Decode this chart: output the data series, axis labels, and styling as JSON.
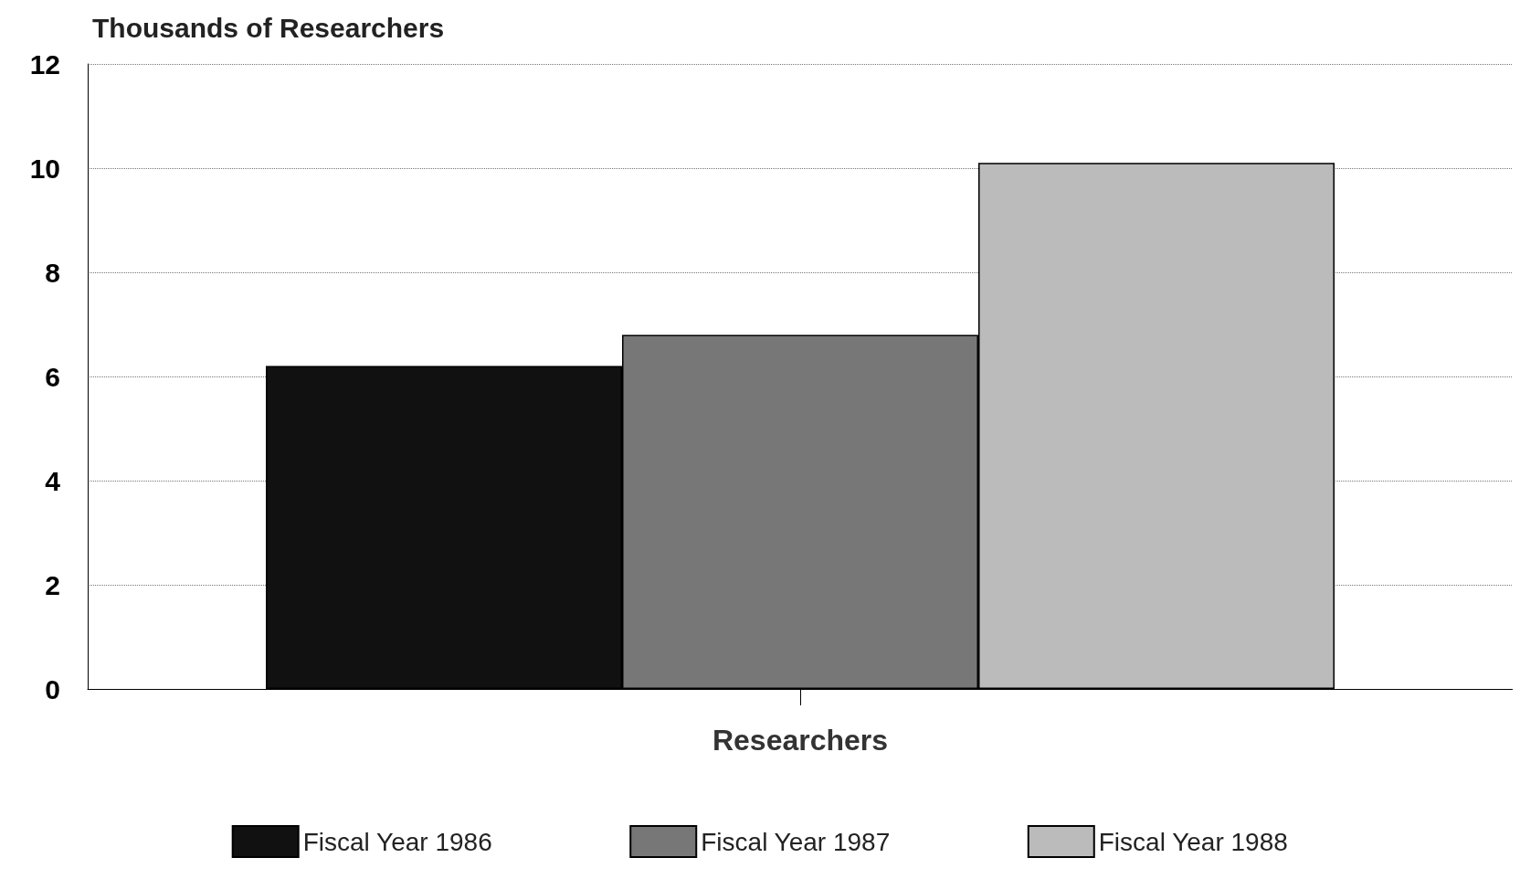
{
  "chart_data": {
    "type": "bar",
    "ylabel": "Thousands of Researchers",
    "categories": [
      "Researchers"
    ],
    "series": [
      {
        "name": "Fiscal Year 1986",
        "color": "#111111",
        "values": [
          6.2
        ]
      },
      {
        "name": "Fiscal Year 1987",
        "color": "#777777",
        "values": [
          6.8
        ]
      },
      {
        "name": "Fiscal Year 1988",
        "color": "#bbbbbb",
        "values": [
          10.1
        ]
      }
    ],
    "ylim": [
      0,
      12
    ],
    "yticks": [
      0,
      2,
      4,
      6,
      8,
      10,
      12
    ],
    "grid": "y",
    "legend": "bottom"
  }
}
